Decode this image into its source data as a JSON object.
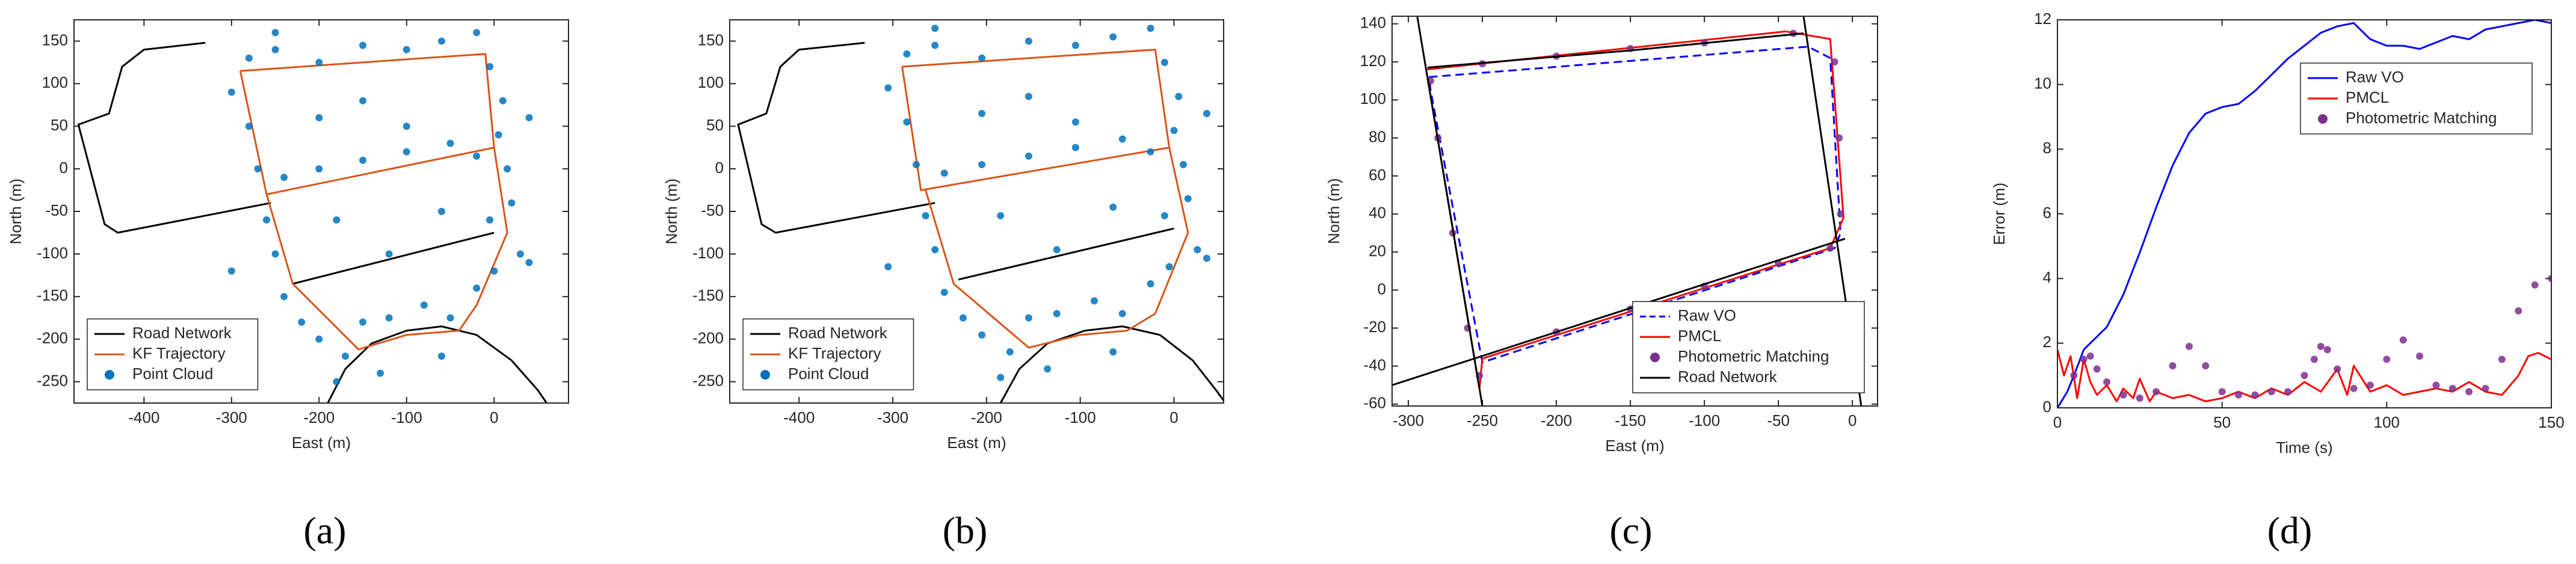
{
  "chart_data": [
    {
      "type": "line",
      "label": "(a)",
      "x_label": "East (m)",
      "y_label": "North (m)",
      "xlim": [
        -480,
        85
      ],
      "ylim": [
        -275,
        175
      ],
      "xticks": [
        -400,
        -300,
        -200,
        -100,
        0
      ],
      "yticks": [
        -250,
        -200,
        -150,
        -100,
        -50,
        0,
        50,
        100,
        150
      ],
      "legend": "southwest",
      "series": [
        {
          "name": "Road Network",
          "color": "#000000",
          "mode": "line",
          "x": [
            -330,
            -400,
            -425,
            -440,
            -475,
            -445,
            -430,
            -255,
            null,
            -230,
            0,
            null,
            -190,
            -170,
            -140,
            -100,
            -60,
            -20,
            20,
            50,
            60
          ],
          "y": [
            148,
            140,
            120,
            65,
            52,
            -65,
            -75,
            -40,
            null,
            -135,
            -75,
            null,
            -275,
            -235,
            -205,
            -190,
            -185,
            -195,
            -225,
            -260,
            -275
          ]
        },
        {
          "name": "KF Trajectory",
          "color": "#d95319",
          "mode": "line",
          "x": [
            -290,
            -10,
            0,
            -260,
            -290,
            null,
            -260,
            -230,
            -155,
            -100,
            -40,
            -20,
            15,
            0
          ],
          "y": [
            115,
            135,
            25,
            -30,
            115,
            null,
            -30,
            -135,
            -212,
            -195,
            -190,
            -160,
            -75,
            25
          ]
        },
        {
          "name": "Point Cloud",
          "color": "#0072bd",
          "mode": "markers",
          "x": [
            -280,
            -250,
            -200,
            -150,
            -100,
            -60,
            -20,
            -5,
            10,
            5,
            15,
            20,
            -5,
            30,
            40,
            -240,
            -200,
            -150,
            -100,
            -50,
            -20,
            -300,
            -280,
            -270,
            -260,
            -250,
            -240,
            -220,
            -200,
            -170,
            -150,
            -120,
            -80,
            -50,
            -20,
            0,
            -180,
            -130,
            -60,
            -200,
            -150,
            -100,
            -180,
            -120,
            -60,
            -300,
            -250,
            40
          ],
          "y": [
            130,
            140,
            125,
            145,
            140,
            150,
            160,
            120,
            80,
            40,
            0,
            -40,
            -60,
            -100,
            -110,
            -10,
            0,
            10,
            20,
            30,
            15,
            90,
            50,
            0,
            -60,
            -100,
            -150,
            -180,
            -200,
            -220,
            -180,
            -175,
            -160,
            -175,
            -140,
            -120,
            -250,
            -240,
            -220,
            60,
            80,
            50,
            -60,
            -100,
            -50,
            -120,
            160,
            60
          ]
        }
      ]
    },
    {
      "type": "line",
      "label": "(b)",
      "x_label": "East (m)",
      "y_label": "North (m)",
      "xlim": [
        -474,
        53
      ],
      "ylim": [
        -275,
        175
      ],
      "xticks": [
        -400,
        -300,
        -200,
        -100,
        0
      ],
      "yticks": [
        -250,
        -200,
        -150,
        -100,
        -50,
        0,
        50,
        100,
        150
      ],
      "legend": "southwest",
      "series": [
        {
          "name": "Road Network",
          "color": "#000000",
          "mode": "line",
          "x": [
            -330,
            -400,
            -420,
            -435,
            -465,
            -440,
            -425,
            -255,
            null,
            -230,
            0,
            null,
            -185,
            -165,
            -135,
            -95,
            -55,
            -15,
            20,
            45,
            53
          ],
          "y": [
            148,
            140,
            120,
            65,
            52,
            -65,
            -75,
            -40,
            null,
            -130,
            -70,
            null,
            -275,
            -235,
            -205,
            -190,
            -185,
            -195,
            -225,
            -260,
            -272
          ]
        },
        {
          "name": "KF Trajectory",
          "color": "#d95319",
          "mode": "line",
          "x": [
            -290,
            -20,
            -5,
            -270,
            -290,
            null,
            -265,
            -235,
            -155,
            -100,
            -50,
            -20,
            15,
            -5
          ],
          "y": [
            120,
            140,
            25,
            -25,
            120,
            null,
            -25,
            -135,
            -210,
            -195,
            -190,
            -170,
            -75,
            25
          ]
        },
        {
          "name": "Point Cloud",
          "color": "#0072bd",
          "mode": "markers",
          "x": [
            -285,
            -255,
            -205,
            -155,
            -105,
            -65,
            -25,
            -10,
            5,
            0,
            10,
            15,
            -10,
            25,
            35,
            -245,
            -205,
            -155,
            -105,
            -55,
            -25,
            -305,
            -285,
            -275,
            -265,
            -255,
            -245,
            -225,
            -205,
            -175,
            -155,
            -125,
            -85,
            -55,
            -25,
            -5,
            -185,
            -135,
            -65,
            -205,
            -155,
            -105,
            -185,
            -125,
            -65,
            -305,
            -255,
            35
          ],
          "y": [
            135,
            145,
            130,
            150,
            145,
            155,
            165,
            125,
            85,
            45,
            5,
            -35,
            -55,
            -95,
            -105,
            -5,
            5,
            15,
            25,
            35,
            20,
            95,
            55,
            5,
            -55,
            -95,
            -145,
            -175,
            -195,
            -215,
            -175,
            -170,
            -155,
            -170,
            -135,
            -115,
            -245,
            -235,
            -215,
            65,
            85,
            55,
            -55,
            -95,
            -45,
            -115,
            165,
            65
          ]
        }
      ]
    },
    {
      "type": "line",
      "label": "(c)",
      "x_label": "East (m)",
      "y_label": "North (m)",
      "xlim": [
        -311,
        17
      ],
      "ylim": [
        -61,
        144
      ],
      "xticks": [
        -300,
        -250,
        -200,
        -150,
        -100,
        -50,
        0
      ],
      "yticks": [
        -60,
        -40,
        -20,
        0,
        20,
        40,
        60,
        80,
        100,
        120,
        140
      ],
      "legend": "southeast",
      "series": [
        {
          "name": "Raw VO",
          "color": "#0000ff",
          "mode": "dashed",
          "x": [
            -286,
            -30,
            -15,
            -8,
            -12,
            -250,
            -285,
            -286
          ],
          "y": [
            112,
            128,
            122,
            30,
            22,
            -38,
            105,
            112
          ]
        },
        {
          "name": "PMCL",
          "color": "#ff0000",
          "mode": "line",
          "x": [
            -252,
            -250,
            -15,
            -6,
            -15,
            -45,
            -288,
            -252
          ],
          "y": [
            -52,
            -36,
            22,
            38,
            132,
            136,
            116,
            -52
          ]
        },
        {
          "name": "Photometric Matching",
          "color": "#7e2f8e",
          "mode": "markers",
          "x": [
            -285,
            -280,
            -270,
            -260,
            -252,
            -200,
            -150,
            -100,
            -50,
            -15,
            -8,
            -9,
            -12,
            -40,
            -100,
            -150,
            -200,
            -250
          ],
          "y": [
            110,
            80,
            30,
            -20,
            -45,
            -22,
            -10,
            2,
            14,
            22,
            40,
            80,
            120,
            135,
            130,
            127,
            123,
            119
          ]
        },
        {
          "name": "Road Network",
          "color": "#000000",
          "mode": "line",
          "x": [
            -294,
            -250,
            null,
            -311,
            -5,
            null,
            -33,
            6,
            null,
            -287,
            -150,
            -33
          ],
          "y": [
            144,
            -61,
            null,
            -50,
            27,
            null,
            144,
            -61,
            null,
            117,
            126,
            135
          ]
        }
      ]
    },
    {
      "type": "line",
      "label": "(d)",
      "x_label": "Time (s)",
      "y_label": "Error (m)",
      "xlim": [
        0,
        150
      ],
      "ylim": [
        0,
        12
      ],
      "xticks": [
        0,
        50,
        100,
        150
      ],
      "yticks": [
        0,
        2,
        4,
        6,
        8,
        10,
        12
      ],
      "legend": "northeast",
      "series": [
        {
          "name": "Raw VO",
          "color": "#0000ff",
          "mode": "line",
          "x": [
            0,
            3,
            5,
            8,
            10,
            15,
            20,
            25,
            30,
            35,
            40,
            45,
            50,
            55,
            60,
            65,
            70,
            75,
            80,
            85,
            90,
            95,
            100,
            105,
            110,
            115,
            120,
            125,
            130,
            135,
            140,
            145,
            150
          ],
          "y": [
            0,
            0.5,
            1,
            1.8,
            2,
            2.5,
            3.5,
            4.8,
            6.2,
            7.5,
            8.5,
            9.1,
            9.3,
            9.4,
            9.8,
            10.3,
            10.8,
            11.2,
            11.6,
            11.8,
            11.9,
            11.4,
            11.2,
            11.2,
            11.1,
            11.3,
            11.5,
            11.4,
            11.7,
            11.8,
            11.9,
            12,
            11.9
          ]
        },
        {
          "name": "PMCL",
          "color": "#ff0000",
          "mode": "line",
          "x": [
            0,
            2,
            4,
            6,
            8,
            10,
            12,
            15,
            18,
            20,
            23,
            25,
            28,
            30,
            35,
            40,
            45,
            50,
            55,
            60,
            65,
            70,
            75,
            80,
            85,
            88,
            90,
            95,
            100,
            105,
            110,
            115,
            120,
            125,
            130,
            135,
            140,
            143,
            146,
            150
          ],
          "y": [
            1.8,
            1,
            1.6,
            0.3,
            1.5,
            0.8,
            0.4,
            0.7,
            0.2,
            0.6,
            0.3,
            0.9,
            0.2,
            0.5,
            0.3,
            0.4,
            0.2,
            0.3,
            0.5,
            0.3,
            0.6,
            0.4,
            0.8,
            0.5,
            1.2,
            0.4,
            1.3,
            0.5,
            0.7,
            0.4,
            0.5,
            0.6,
            0.5,
            0.8,
            0.5,
            0.4,
            1.0,
            1.6,
            1.7,
            1.5
          ]
        },
        {
          "name": "Photometric Matching",
          "color": "#7e2f8e",
          "mode": "markers",
          "x": [
            5,
            8,
            10,
            12,
            15,
            20,
            25,
            30,
            35,
            40,
            45,
            50,
            55,
            60,
            65,
            70,
            75,
            78,
            80,
            82,
            85,
            90,
            95,
            100,
            105,
            110,
            115,
            120,
            125,
            130,
            135,
            140,
            145,
            150
          ],
          "y": [
            1,
            1.5,
            1.6,
            1.2,
            0.8,
            0.4,
            0.3,
            0.5,
            1.3,
            1.9,
            1.3,
            0.5,
            0.4,
            0.4,
            0.5,
            0.5,
            1,
            1.5,
            1.9,
            1.8,
            1.2,
            0.6,
            0.7,
            1.5,
            2.1,
            1.6,
            0.7,
            0.6,
            0.5,
            0.6,
            1.5,
            3,
            3.8,
            4
          ]
        }
      ]
    }
  ]
}
